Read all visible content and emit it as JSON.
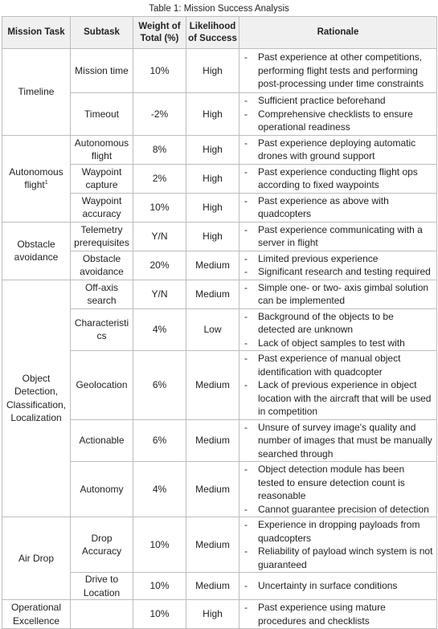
{
  "caption": "Table 1: Mission Success Analysis",
  "headers": {
    "task": "Mission Task",
    "subtask": "Subtask",
    "weight": "Weight of Total (%)",
    "likelihood": "Likelihood of Success",
    "rationale": "Rationale"
  },
  "rows": [
    {
      "task": "Timeline",
      "subtask": "Mission time",
      "weight": "10%",
      "likelihood": "High",
      "rationale": [
        "Past experience at other competitions, performing flight tests and performing post-processing under time constraints"
      ]
    },
    {
      "subtask": "Timeout",
      "weight": "-2%",
      "likelihood": "High",
      "rationale": [
        "Sufficient practice beforehand",
        "Comprehensive checklists to ensure operational readiness"
      ]
    },
    {
      "task": "Autonomous flight",
      "task_sup": "1",
      "subtask": "Autonomous flight",
      "weight": "8%",
      "likelihood": "High",
      "rationale": [
        "Past experience deploying automatic drones with ground support"
      ]
    },
    {
      "subtask": "Waypoint capture",
      "weight": "2%",
      "likelihood": "High",
      "rationale": [
        "Past experience conducting flight ops according to fixed waypoints"
      ]
    },
    {
      "subtask": "Waypoint accuracy",
      "weight": "10%",
      "likelihood": "High",
      "rationale": [
        "Past experience as above with quadcopters"
      ]
    },
    {
      "task": "Obstacle avoidance",
      "subtask": "Telemetry prerequisites",
      "weight": "Y/N",
      "likelihood": "High",
      "rationale": [
        "Past experience communicating with a server in flight"
      ]
    },
    {
      "subtask": "Obstacle avoidance",
      "weight": "20%",
      "likelihood": "Medium",
      "rationale": [
        "Limited previous experience",
        "Significant research and testing required"
      ]
    },
    {
      "task": "Object Detection, Classification, Localization",
      "subtask": "Off-axis search",
      "weight": "Y/N",
      "likelihood": "Medium",
      "rationale": [
        "Simple one- or two- axis gimbal solution can be implemented"
      ]
    },
    {
      "subtask": "Characteristics",
      "weight": "4%",
      "likelihood": "Low",
      "rationale": [
        "Background of the objects to be detected are unknown",
        "Lack of object samples to test with"
      ]
    },
    {
      "subtask": "Geolocation",
      "weight": "6%",
      "likelihood": "Medium",
      "rationale": [
        "Past experience of manual object identification with quadcopter",
        "Lack of previous experience in object location with the aircraft that will be used in competition"
      ]
    },
    {
      "subtask": "Actionable",
      "weight": "6%",
      "likelihood": "Medium",
      "rationale": [
        "Unsure of survey image's quality and number of images that must be manually searched through"
      ]
    },
    {
      "subtask": "Autonomy",
      "weight": "4%",
      "likelihood": "Medium",
      "rationale": [
        "Object detection module has been tested to ensure detection count is reasonable",
        "Cannot guarantee precision of detection"
      ]
    },
    {
      "task": "Air Drop",
      "subtask": "Drop Accuracy",
      "weight": "10%",
      "likelihood": "Medium",
      "rationale": [
        "Experience in dropping payloads from quadcopters",
        "Reliability of payload winch system is not guaranteed"
      ]
    },
    {
      "subtask": "Drive to Location",
      "weight": "10%",
      "likelihood": "Medium",
      "rationale": [
        "Uncertainty in surface conditions"
      ]
    },
    {
      "task": "Operational Excellence",
      "subtask": "",
      "weight": "10%",
      "likelihood": "High",
      "rationale": [
        "Past experience using mature procedures and checklists"
      ]
    }
  ]
}
